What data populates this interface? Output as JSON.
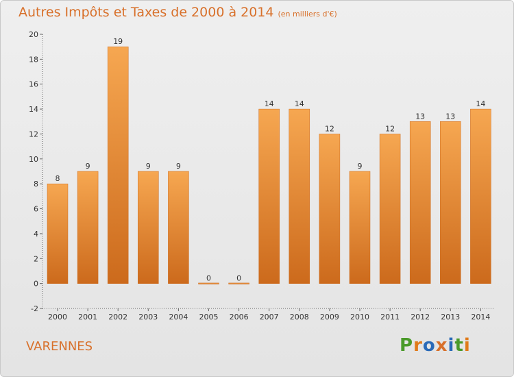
{
  "title": "Autres Impôts et Taxes de 2000 à 2014",
  "unit_note": "(en milliers d'€)",
  "commune": "VARENNES",
  "logo_text": "Proxiti",
  "colors": {
    "title": "#d8702a",
    "bar_light": "#f6a751",
    "bar_dark": "#cc6a1c",
    "logo": [
      "#4a9a2a",
      "#e07a1a",
      "#2a6ab8",
      "#d8702a",
      "#2a6ab8",
      "#4a9a2a",
      "#e07a1a"
    ]
  },
  "chart_data": {
    "type": "bar",
    "categories": [
      "2000",
      "2001",
      "2002",
      "2003",
      "2004",
      "2005",
      "2006",
      "2007",
      "2008",
      "2009",
      "2010",
      "2011",
      "2012",
      "2013",
      "2014"
    ],
    "values": [
      8,
      9,
      19,
      9,
      9,
      0,
      0,
      14,
      14,
      12,
      9,
      12,
      13,
      13,
      14
    ],
    "ylim": [
      -2,
      20
    ],
    "yticks": [
      -2,
      0,
      2,
      4,
      6,
      8,
      10,
      12,
      14,
      16,
      18,
      20
    ],
    "title": "Autres Impôts et Taxes de 2000 à 2014",
    "xlabel": "",
    "ylabel": "",
    "grid": false,
    "data_labels": true
  }
}
